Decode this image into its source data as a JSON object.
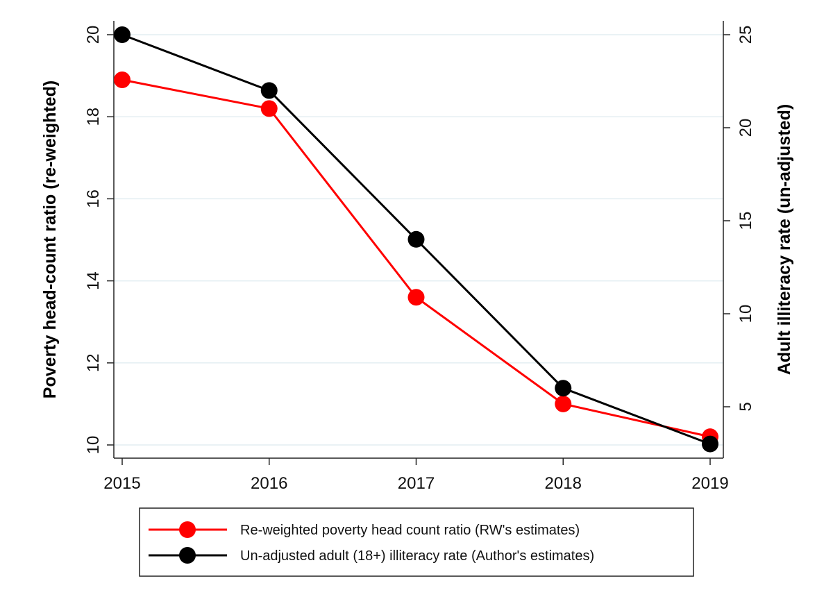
{
  "chart_data": {
    "type": "line",
    "title": "",
    "x": [
      2015,
      2016,
      2017,
      2018,
      2019
    ],
    "xlabel": "",
    "ylabel_left": "Poverty head-count ratio (re-weighted)",
    "ylabel_right": "Adult illiteracy rate (un-adjusted)",
    "ylim_left": [
      10,
      20
    ],
    "ylim_right": [
      3,
      25
    ],
    "yticks_left": [
      10,
      12,
      14,
      16,
      18,
      20
    ],
    "yticks_right": [
      5,
      10,
      15,
      20,
      25
    ],
    "grid": true,
    "legend_position": "bottom",
    "series": [
      {
        "name": "Re-weighted poverty head count ratio (RW's estimates)",
        "axis": "left",
        "color": "#ff0000",
        "values": [
          18.9,
          18.2,
          13.6,
          11.0,
          10.2
        ]
      },
      {
        "name": "Un-adjusted adult (18+) illiteracy rate (Author's estimates)",
        "axis": "right",
        "color": "#000000",
        "values": [
          25.0,
          22.0,
          14.0,
          6.0,
          3.0
        ]
      }
    ]
  }
}
